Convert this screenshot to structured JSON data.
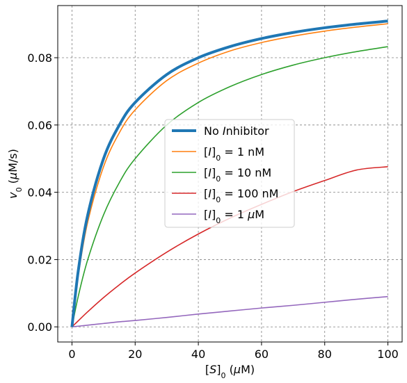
{
  "chart_data": {
    "type": "line",
    "title": "",
    "xlabel": "[S]₀ (μM)",
    "ylabel": "v₀ (μM/s)",
    "xlim": [
      -4.5,
      104.5
    ],
    "ylim": [
      -0.0045,
      0.0955
    ],
    "xticks": [
      0,
      20,
      40,
      60,
      80,
      100
    ],
    "yticks": [
      0.0,
      0.02,
      0.04,
      0.06,
      0.08
    ],
    "xtick_labels": [
      "0",
      "20",
      "40",
      "60",
      "80",
      "100"
    ],
    "ytick_labels": [
      "0.00",
      "0.02",
      "0.04",
      "0.06",
      "0.08"
    ],
    "grid": true,
    "legend_position": "center-right",
    "x": [
      0,
      2,
      5,
      10,
      15,
      20,
      30,
      40,
      50,
      60,
      70,
      80,
      90,
      100
    ],
    "series": [
      {
        "name": "No Inhibitor",
        "color": "#1f77b4",
        "values": [
          0.0,
          0.0167,
          0.0333,
          0.05,
          0.06,
          0.0667,
          0.075,
          0.08,
          0.0833,
          0.0857,
          0.0875,
          0.0889,
          0.09,
          0.0909
        ]
      },
      {
        "name": "[I]₀ = 1 nM",
        "color": "#ff7f0e",
        "values": [
          0.0,
          0.0153,
          0.0312,
          0.0476,
          0.0577,
          0.0645,
          0.0732,
          0.0784,
          0.082,
          0.0845,
          0.0864,
          0.0879,
          0.0891,
          0.0901
        ]
      },
      {
        "name": "[I]₀ = 10 nM",
        "color": "#2ca02c",
        "values": [
          0.0,
          0.0091,
          0.02,
          0.0333,
          0.0429,
          0.05,
          0.06,
          0.0667,
          0.0714,
          0.075,
          0.0778,
          0.08,
          0.0818,
          0.0833
        ]
      },
      {
        "name": "[I]₀ = 100 nM",
        "color": "#d62728",
        "values": [
          0.0,
          0.0018,
          0.0045,
          0.0087,
          0.0125,
          0.016,
          0.0222,
          0.0276,
          0.0323,
          0.0364,
          0.0402,
          0.0435,
          0.0466,
          0.0476
        ]
      },
      {
        "name": "[I]₀ = 1 μM",
        "color": "#9467bd",
        "values": [
          0.0,
          0.0002,
          0.0005,
          0.001,
          0.0015,
          0.0019,
          0.0028,
          0.0038,
          0.0047,
          0.0056,
          0.0064,
          0.0073,
          0.0082,
          0.009
        ]
      }
    ]
  }
}
